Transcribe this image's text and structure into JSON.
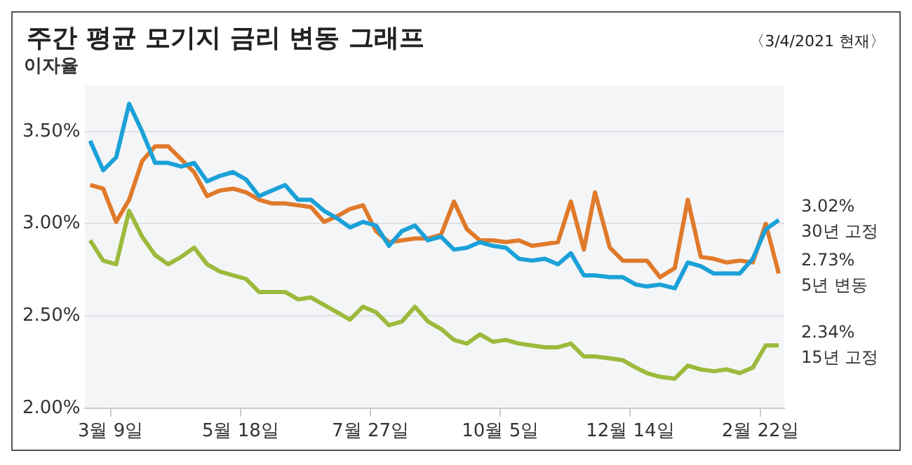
{
  "chart_data": {
    "type": "line",
    "title": "주간 평균 모기지 금리 변동 그래프",
    "subtitle": "〈3/4/2021 현재〉",
    "ylabel": "이자율",
    "x": [
      "2020-02-27",
      "2020-03-05",
      "2020-03-12",
      "2020-03-19",
      "2020-03-26",
      "2020-04-02",
      "2020-04-09",
      "2020-04-16",
      "2020-04-23",
      "2020-04-30",
      "2020-05-07",
      "2020-05-14",
      "2020-05-21",
      "2020-05-28",
      "2020-06-04",
      "2020-06-11",
      "2020-06-18",
      "2020-06-25",
      "2020-07-02",
      "2020-07-09",
      "2020-07-16",
      "2020-07-23",
      "2020-07-30",
      "2020-08-06",
      "2020-08-13",
      "2020-08-20",
      "2020-08-27",
      "2020-09-03",
      "2020-09-10",
      "2020-09-17",
      "2020-09-24",
      "2020-10-01",
      "2020-10-08",
      "2020-10-15",
      "2020-10-22",
      "2020-10-29",
      "2020-11-05",
      "2020-11-12",
      "2020-11-19",
      "2020-11-25",
      "2020-12-03",
      "2020-12-10",
      "2020-12-17",
      "2020-12-23",
      "2020-12-30",
      "2021-01-07",
      "2021-01-14",
      "2021-01-21",
      "2021-01-28",
      "2021-02-04",
      "2021-02-11",
      "2021-02-18",
      "2021-02-25",
      "2021-03-04"
    ],
    "series": [
      {
        "name": "30년 고정",
        "color": "#1ba1d8",
        "values": [
          3.45,
          3.29,
          3.36,
          3.65,
          3.5,
          3.33,
          3.33,
          3.31,
          3.33,
          3.23,
          3.26,
          3.28,
          3.24,
          3.15,
          3.18,
          3.21,
          3.13,
          3.13,
          3.07,
          3.03,
          2.98,
          3.01,
          2.99,
          2.88,
          2.96,
          2.99,
          2.91,
          2.93,
          2.86,
          2.87,
          2.9,
          2.88,
          2.87,
          2.81,
          2.8,
          2.81,
          2.78,
          2.84,
          2.72,
          2.72,
          2.71,
          2.71,
          2.67,
          2.66,
          2.67,
          2.65,
          2.79,
          2.77,
          2.73,
          2.73,
          2.73,
          2.81,
          2.97,
          3.02
        ],
        "value_labels": [
          null,
          null,
          null,
          null,
          null,
          null,
          null,
          null,
          null,
          null,
          null,
          null,
          null,
          null,
          null,
          null,
          null,
          null,
          null,
          null,
          null,
          null,
          null,
          null,
          null,
          null,
          null,
          null,
          null,
          null,
          null,
          null,
          null,
          null,
          null,
          null,
          null,
          null,
          null,
          null,
          null,
          null,
          null,
          null,
          null,
          null,
          null,
          null,
          null,
          null,
          null,
          null,
          null,
          "3.02%"
        ]
      },
      {
        "name": "5년 변동",
        "color": "#e07a2a",
        "values": [
          3.21,
          3.19,
          3.01,
          3.13,
          3.34,
          3.42,
          3.42,
          3.35,
          3.28,
          3.15,
          3.18,
          3.19,
          3.17,
          3.13,
          3.11,
          3.11,
          3.1,
          3.09,
          3.01,
          3.04,
          3.08,
          3.1,
          2.96,
          2.9,
          2.91,
          2.92,
          2.92,
          2.94,
          3.12,
          2.97,
          2.91,
          2.91,
          2.9,
          2.91,
          2.88,
          2.89,
          2.9,
          3.12,
          2.86,
          3.17,
          2.87,
          2.8,
          2.8,
          2.8,
          2.71,
          2.76,
          3.13,
          2.82,
          2.81,
          2.79,
          2.8,
          2.79,
          3.0,
          2.73
        ],
        "value_labels": [
          null,
          null,
          null,
          null,
          null,
          null,
          null,
          null,
          null,
          null,
          null,
          null,
          null,
          null,
          null,
          null,
          null,
          null,
          null,
          null,
          null,
          null,
          null,
          null,
          null,
          null,
          null,
          null,
          null,
          null,
          null,
          null,
          null,
          null,
          null,
          null,
          null,
          null,
          null,
          null,
          null,
          null,
          null,
          null,
          null,
          null,
          null,
          null,
          null,
          null,
          null,
          null,
          null,
          "2.73%"
        ]
      },
      {
        "name": "15년 고정",
        "color": "#9cba3c",
        "values": [
          2.91,
          2.8,
          2.78,
          3.07,
          2.93,
          2.83,
          2.78,
          2.82,
          2.87,
          2.78,
          2.74,
          2.72,
          2.7,
          2.63,
          2.63,
          2.63,
          2.59,
          2.6,
          2.56,
          2.52,
          2.48,
          2.55,
          2.52,
          2.45,
          2.47,
          2.55,
          2.47,
          2.43,
          2.37,
          2.35,
          2.4,
          2.36,
          2.37,
          2.35,
          2.34,
          2.33,
          2.33,
          2.35,
          2.28,
          2.28,
          2.27,
          2.26,
          2.22,
          2.19,
          2.17,
          2.16,
          2.23,
          2.21,
          2.2,
          2.21,
          2.19,
          2.22,
          2.34,
          2.34
        ],
        "value_labels": [
          null,
          null,
          null,
          null,
          null,
          null,
          null,
          null,
          null,
          null,
          null,
          null,
          null,
          null,
          null,
          null,
          null,
          null,
          null,
          null,
          null,
          null,
          null,
          null,
          null,
          null,
          null,
          null,
          null,
          null,
          null,
          null,
          null,
          null,
          null,
          null,
          null,
          null,
          null,
          null,
          null,
          null,
          null,
          null,
          null,
          null,
          null,
          null,
          null,
          null,
          null,
          null,
          null,
          "2.34%"
        ]
      }
    ],
    "xlim": [
      "2020-02-24",
      "2021-03-07"
    ],
    "xticks": [
      {
        "value": "2020-03-09",
        "label": "3월 9일"
      },
      {
        "value": "2020-05-18",
        "label": "5월 18일"
      },
      {
        "value": "2020-07-27",
        "label": "7월 27일"
      },
      {
        "value": "2020-10-05",
        "label": "10월 5일"
      },
      {
        "value": "2020-12-14",
        "label": "12월 14일"
      },
      {
        "value": "2021-02-22",
        "label": "2월 22일"
      }
    ],
    "ylim": [
      2.0,
      3.75
    ],
    "yticks": [
      {
        "value": 2.0,
        "label": "2.00%"
      },
      {
        "value": 2.5,
        "label": "2.50%"
      },
      {
        "value": 3.0,
        "label": "3.00%"
      },
      {
        "value": 3.5,
        "label": "3.50%"
      }
    ],
    "grid": "y",
    "legend": false,
    "marker": "none",
    "line_style": "solid"
  }
}
